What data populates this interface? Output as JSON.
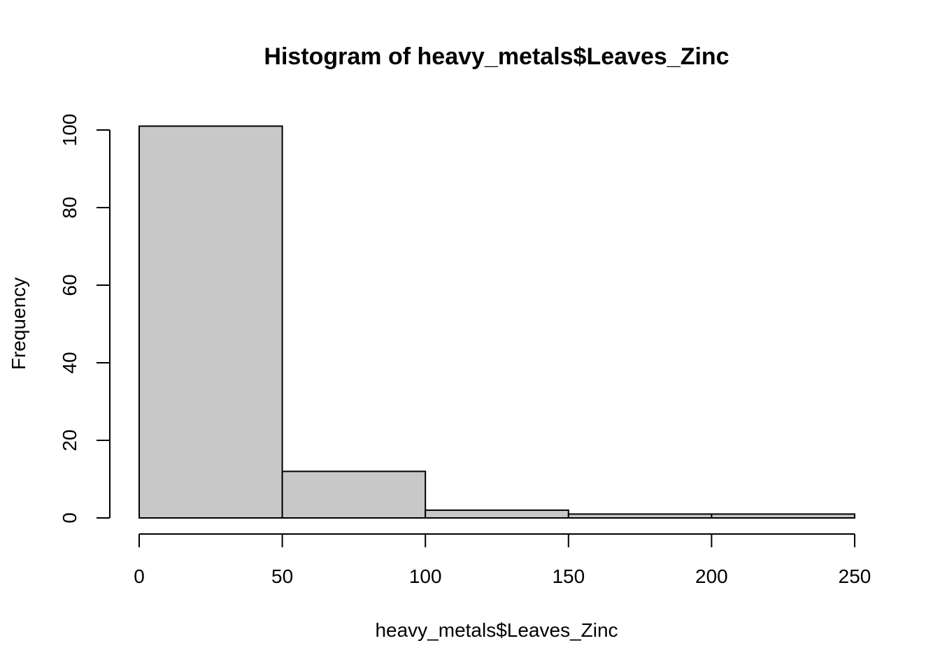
{
  "chart_data": {
    "type": "bar",
    "title": "Histogram of heavy_metals$Leaves_Zinc",
    "xlabel": "heavy_metals$Leaves_Zinc",
    "ylabel": "Frequency",
    "bins": [
      {
        "start": 0,
        "end": 50,
        "count": 101
      },
      {
        "start": 50,
        "end": 100,
        "count": 12
      },
      {
        "start": 100,
        "end": 150,
        "count": 2
      },
      {
        "start": 150,
        "end": 200,
        "count": 1
      },
      {
        "start": 200,
        "end": 250,
        "count": 1
      }
    ],
    "xlim": [
      0,
      250
    ],
    "ylim": [
      0,
      101
    ],
    "x_ticks": [
      0,
      50,
      100,
      150,
      200,
      250
    ],
    "y_ticks": [
      0,
      20,
      40,
      60,
      80,
      100
    ],
    "grid": false,
    "bar_color": "#c8c8c8",
    "edge_color": "#000000"
  }
}
